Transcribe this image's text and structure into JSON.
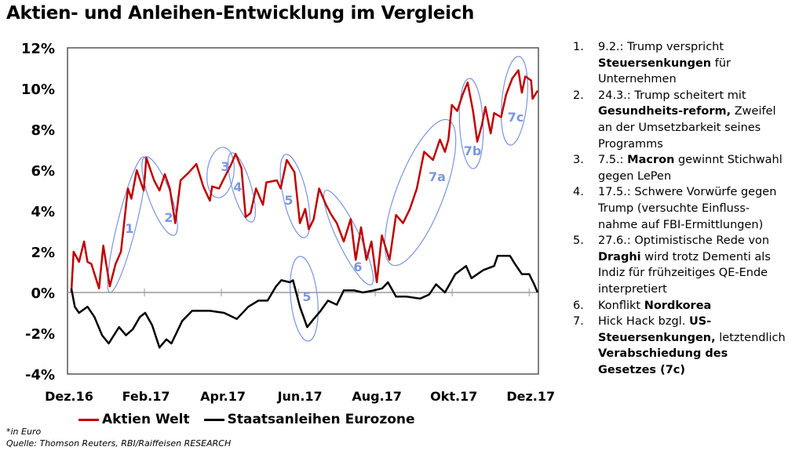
{
  "chart_data": {
    "type": "line",
    "title": "Aktien- und Anleihen-Entwicklung im Vergleich",
    "xlabel": "",
    "ylabel": "",
    "xlim": [
      0,
      12.24
    ],
    "ylim": [
      -4,
      12
    ],
    "x_unit": "months since Dec 2016",
    "x_ticks": [
      {
        "x": 0,
        "label": "Dez.16"
      },
      {
        "x": 2,
        "label": "Feb.17"
      },
      {
        "x": 4,
        "label": "Apr.17"
      },
      {
        "x": 6,
        "label": "Jun.17"
      },
      {
        "x": 8,
        "label": "Aug.17"
      },
      {
        "x": 10,
        "label": "Okt.17"
      },
      {
        "x": 12,
        "label": "Dez.17"
      }
    ],
    "y_ticks": [
      {
        "y": 12,
        "label": "12%"
      },
      {
        "y": 10,
        "label": "10%"
      },
      {
        "y": 8,
        "label": "8%"
      },
      {
        "y": 6,
        "label": "6%"
      },
      {
        "y": 4,
        "label": "4%"
      },
      {
        "y": 2,
        "label": "2%"
      },
      {
        "y": 0,
        "label": "0%"
      },
      {
        "y": -2,
        "label": "-2%"
      },
      {
        "y": -4,
        "label": "-4%"
      }
    ],
    "legend_position": "bottom",
    "series": [
      {
        "name": "Aktien Welt",
        "color": "#c00000",
        "x": [
          0.1,
          0.16,
          0.3,
          0.43,
          0.52,
          0.62,
          0.82,
          0.93,
          1.1,
          1.25,
          1.39,
          1.57,
          1.66,
          1.8,
          1.98,
          2.05,
          2.25,
          2.39,
          2.53,
          2.66,
          2.8,
          2.94,
          3.16,
          3.35,
          3.53,
          3.7,
          3.76,
          3.94,
          4.07,
          4.26,
          4.37,
          4.52,
          4.63,
          4.76,
          4.9,
          5.08,
          5.17,
          5.44,
          5.54,
          5.7,
          5.9,
          6.04,
          6.18,
          6.27,
          6.4,
          6.54,
          6.72,
          6.86,
          7.0,
          7.18,
          7.36,
          7.49,
          7.63,
          7.77,
          7.9,
          8.04,
          8.17,
          8.37,
          8.54,
          8.72,
          8.9,
          9.08,
          9.27,
          9.5,
          9.68,
          9.81,
          9.9,
          9.99,
          10.13,
          10.27,
          10.4,
          10.54,
          10.65,
          10.77,
          10.86,
          11.0,
          11.09,
          11.27,
          11.4,
          11.56,
          11.72,
          11.81,
          11.9,
          12.05,
          12.09,
          12.22
        ],
        "y": [
          0,
          2.0,
          1.5,
          2.5,
          1.5,
          1.4,
          0.2,
          2.3,
          0.3,
          1.4,
          2.0,
          5.1,
          4.6,
          6.0,
          5.0,
          6.6,
          5.5,
          5.0,
          5.8,
          5.1,
          3.4,
          5.5,
          5.9,
          6.3,
          5.2,
          4.5,
          5.2,
          5.1,
          5.6,
          6.3,
          6.8,
          6.1,
          3.7,
          3.9,
          5.1,
          4.3,
          5.4,
          5.5,
          5.1,
          6.5,
          5.9,
          3.4,
          4.1,
          3.1,
          3.6,
          5.1,
          4.3,
          3.8,
          3.4,
          2.5,
          3.6,
          1.6,
          3.2,
          1.6,
          2.5,
          0.5,
          2.8,
          1.6,
          3.8,
          3.4,
          4.1,
          5.1,
          6.9,
          6.5,
          7.5,
          6.9,
          7.5,
          9.2,
          8.9,
          9.7,
          10.3,
          8.9,
          7.4,
          8.2,
          9.1,
          7.8,
          8.8,
          8.6,
          9.7,
          10.5,
          10.9,
          9.8,
          10.6,
          10.4,
          9.5,
          9.9
        ]
      },
      {
        "name": "Staatsanleihen Eurozone",
        "color": "#000000",
        "x": [
          0.1,
          0.19,
          0.3,
          0.52,
          0.7,
          0.9,
          1.07,
          1.34,
          1.52,
          1.7,
          1.88,
          2.02,
          2.2,
          2.39,
          2.57,
          2.7,
          2.98,
          3.24,
          3.7,
          4.07,
          4.4,
          4.7,
          4.96,
          5.2,
          5.42,
          5.56,
          5.78,
          5.86,
          6.04,
          6.23,
          6.4,
          6.58,
          6.77,
          7.0,
          7.18,
          7.45,
          7.68,
          7.96,
          8.18,
          8.33,
          8.54,
          8.8,
          9.17,
          9.4,
          9.58,
          9.81,
          9.9,
          10.08,
          10.36,
          10.5,
          10.81,
          11.09,
          11.18,
          11.5,
          11.63,
          11.81,
          12.0,
          12.13,
          12.22
        ],
        "y": [
          0.2,
          -0.7,
          -1.0,
          -0.7,
          -1.2,
          -2.1,
          -2.5,
          -1.7,
          -2.1,
          -1.8,
          -1.2,
          -1.0,
          -1.6,
          -2.7,
          -2.3,
          -2.5,
          -1.4,
          -0.9,
          -0.9,
          -1.0,
          -1.3,
          -0.7,
          -0.4,
          -0.4,
          0.3,
          0.6,
          0.5,
          0.6,
          -0.7,
          -1.7,
          -1.3,
          -0.9,
          -0.4,
          -0.6,
          0.1,
          0.1,
          0.0,
          0.1,
          0.2,
          0.5,
          -0.2,
          -0.2,
          -0.3,
          -0.1,
          0.4,
          0.0,
          0.3,
          0.9,
          1.3,
          0.7,
          1.1,
          1.3,
          1.8,
          1.8,
          1.4,
          0.9,
          0.9,
          0.4,
          0.0
        ]
      }
    ],
    "annotations": [
      {
        "label": "1",
        "series": "Aktien Welt"
      },
      {
        "label": "2",
        "series": "Aktien Welt"
      },
      {
        "label": "3",
        "series": "Aktien Welt"
      },
      {
        "label": "4",
        "series": "Aktien Welt"
      },
      {
        "label": "5",
        "series": "Aktien Welt"
      },
      {
        "label": "6",
        "series": "Aktien Welt"
      },
      {
        "label": "7a",
        "series": "Aktien Welt"
      },
      {
        "label": "7b",
        "series": "Aktien Welt"
      },
      {
        "label": "7c",
        "series": "Aktien Welt"
      },
      {
        "label": "5",
        "series": "Staatsanleihen Eurozone"
      }
    ],
    "annotation_color": "#7b96e0"
  },
  "legend": {
    "items": [
      {
        "label": "Aktien Welt",
        "color": "#c00000"
      },
      {
        "label": "Staatsanleihen Eurozone",
        "color": "#000000"
      }
    ]
  },
  "footnote": {
    "currency": "*in Euro",
    "source": "Quelle: Thomson Reuters, RBI/Raiffeisen RESEARCH"
  },
  "events": [
    {
      "num": "1.",
      "parts": [
        {
          "t": "9.2.: Trump verspricht ",
          "b": false
        },
        {
          "t": "Steuersenkungen",
          "b": true
        },
        {
          "t": " für Unternehmen",
          "b": false
        }
      ]
    },
    {
      "num": "2.",
      "parts": [
        {
          "t": "24.3.: Trump scheitert mit ",
          "b": false
        },
        {
          "t": "Gesundheits-reform,",
          "b": true
        },
        {
          "t": " Zweifel an der Umsetzbarkeit seines Programms",
          "b": false
        }
      ]
    },
    {
      "num": "3.",
      "parts": [
        {
          "t": "7.5.: ",
          "b": false
        },
        {
          "t": "Macron",
          "b": true
        },
        {
          "t": " gewinnt Stichwahl gegen LePen",
          "b": false
        }
      ]
    },
    {
      "num": "4.",
      "parts": [
        {
          "t": "17.5.: Schwere Vorwürfe gegen Trump (versuchte Einfluss-nahme auf FBI-Ermittlungen)",
          "b": false
        }
      ]
    },
    {
      "num": "5.",
      "parts": [
        {
          "t": "27.6.: Optimistische Rede von ",
          "b": false
        },
        {
          "t": "Draghi",
          "b": true
        },
        {
          "t": " wird trotz Dementi als Indiz für frühzeitiges QE-Ende interpretiert",
          "b": false
        }
      ]
    },
    {
      "num": "6.",
      "parts": [
        {
          "t": "Konflikt ",
          "b": false
        },
        {
          "t": "Nordkorea",
          "b": true
        }
      ]
    },
    {
      "num": "7.",
      "parts": [
        {
          "t": "Hick Hack bzgl. ",
          "b": false
        },
        {
          "t": "US-Steuersenkungen,",
          "b": true
        },
        {
          "t": " letztendlich ",
          "b": false
        },
        {
          "t": "Verabschiedung des Gesetzes (7c)",
          "b": true
        }
      ]
    }
  ]
}
